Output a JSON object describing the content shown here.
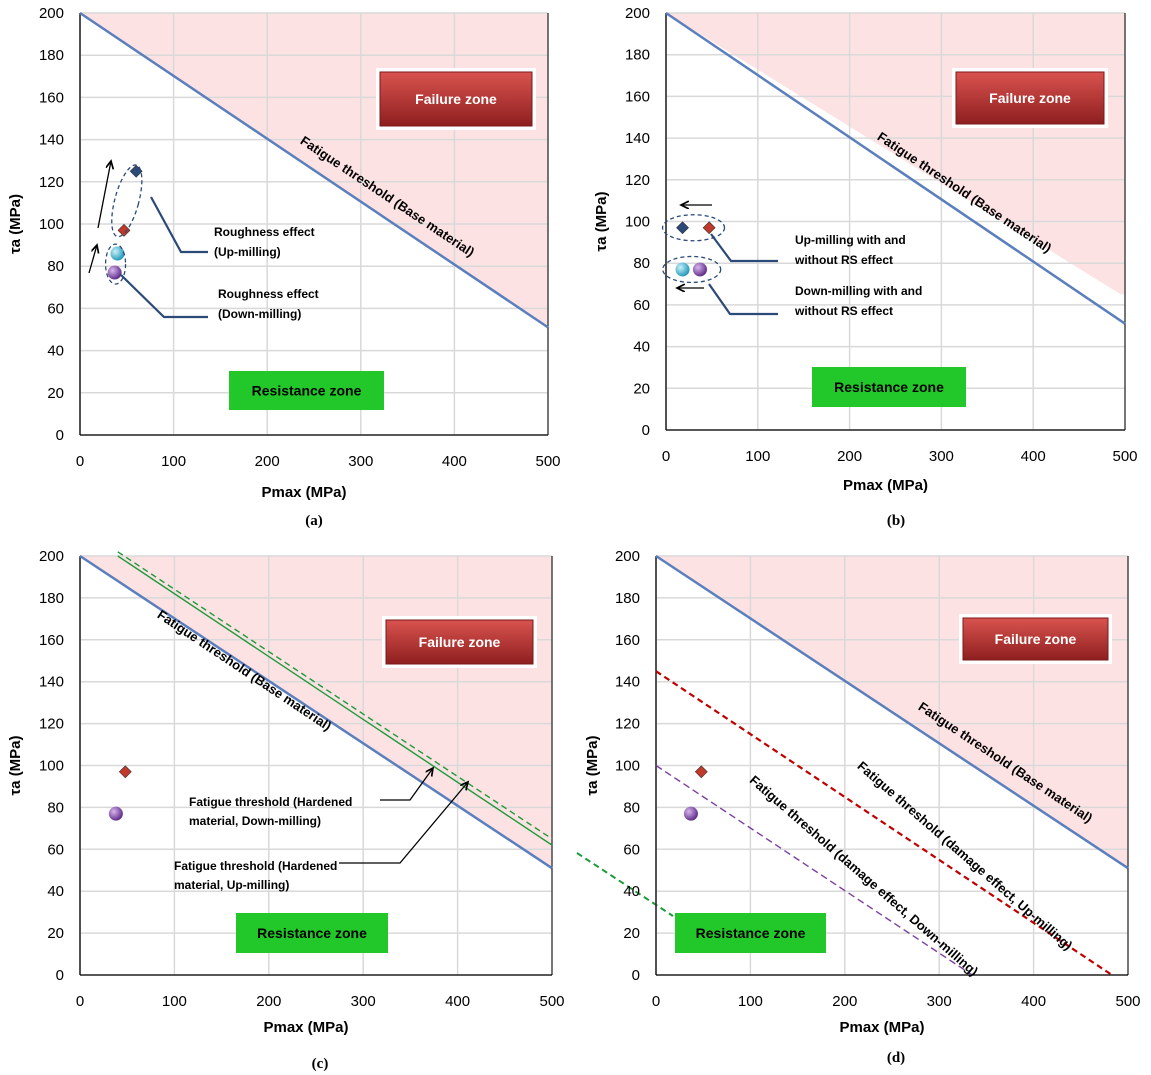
{
  "colors": {
    "failure_fill": "#fde2e4",
    "base_line": "#5b7fbd",
    "failure_box": "#b72d2d",
    "resistance_box": "#22c72a",
    "grid": "#d9d9d9",
    "up_milling_marker": "#c0392b",
    "down_milling_marker": "#7b3fa0",
    "hardened_line": "#1e9a3a",
    "damage_up_line": "#c00000",
    "damage_down_line": "#7b3fa0"
  },
  "chart_data": [
    {
      "panel": "a",
      "caption": "(a)",
      "type": "scatter",
      "xlabel": "Pmax (MPa)",
      "ylabel": "τa (MPa)",
      "xlim": [
        0,
        500
      ],
      "ylim": [
        0,
        200
      ],
      "xticks": [
        0,
        100,
        200,
        300,
        400,
        500
      ],
      "yticks": [
        0,
        20,
        40,
        60,
        80,
        100,
        120,
        140,
        160,
        180,
        200
      ],
      "grid": true,
      "failure_zone_label": "Failure zone",
      "resistance_zone_label": "Resistance zone",
      "lines": [
        {
          "label": "Fatigue threshold (Base material)",
          "x": [
            0,
            500
          ],
          "y": [
            200,
            51
          ],
          "style": "solid"
        }
      ],
      "points": [
        {
          "marker": "diamond",
          "color": "#2c4a78",
          "x": 60,
          "y": 125
        },
        {
          "marker": "diamond",
          "color": "#c0392b",
          "x": 47,
          "y": 97
        },
        {
          "marker": "sphere",
          "color": "#2fb3d3",
          "x": 40,
          "y": 86
        },
        {
          "marker": "sphere",
          "color": "#7b3fa0",
          "x": 37,
          "y": 77
        }
      ],
      "annotations": [
        {
          "lines": [
            "Roughness effect",
            "(Up-milling)"
          ]
        },
        {
          "lines": [
            "Roughness effect",
            "(Down-milling)"
          ]
        }
      ]
    },
    {
      "panel": "b",
      "caption": "(b)",
      "type": "scatter",
      "xlabel": "Pmax (MPa)",
      "ylabel": "τa (MPa)",
      "xlim": [
        0,
        500
      ],
      "ylim": [
        0,
        200
      ],
      "xticks": [
        0,
        100,
        200,
        300,
        400,
        500
      ],
      "yticks": [
        0,
        20,
        40,
        60,
        80,
        100,
        120,
        140,
        160,
        180,
        200
      ],
      "grid": true,
      "failure_zone_label": "Failure zone",
      "resistance_zone_label": "Resistance zone",
      "lines": [
        {
          "label": "Fatigue threshold (Base material)",
          "x": [
            0,
            500
          ],
          "y": [
            200,
            51
          ],
          "style": "solid"
        }
      ],
      "points": [
        {
          "marker": "diamond",
          "color": "#2c4a78",
          "x": 18,
          "y": 97
        },
        {
          "marker": "diamond",
          "color": "#c0392b",
          "x": 47,
          "y": 97
        },
        {
          "marker": "sphere",
          "color": "#2fb3d3",
          "x": 18,
          "y": 77
        },
        {
          "marker": "sphere",
          "color": "#7b3fa0",
          "x": 37,
          "y": 77
        }
      ],
      "annotations": [
        {
          "lines": [
            "Up-milling with and",
            "without RS effect"
          ]
        },
        {
          "lines": [
            "Down-milling with and",
            "without RS effect"
          ]
        }
      ]
    },
    {
      "panel": "c",
      "caption": "(c)",
      "type": "scatter",
      "xlabel": "Pmax (MPa)",
      "ylabel": "τa (MPa)",
      "xlim": [
        0,
        500
      ],
      "ylim": [
        0,
        200
      ],
      "xticks": [
        0,
        100,
        200,
        300,
        400,
        500
      ],
      "yticks": [
        0,
        20,
        40,
        60,
        80,
        100,
        120,
        140,
        160,
        180,
        200
      ],
      "grid": true,
      "failure_zone_label": "Failure zone",
      "resistance_zone_label": "Resistance zone",
      "lines": [
        {
          "label": "Fatigue threshold (Base material)",
          "x": [
            0,
            500
          ],
          "y": [
            200,
            51
          ],
          "style": "solid"
        },
        {
          "label": "Fatigue threshold (Hardened material, Down-milling)",
          "x": [
            40,
            500
          ],
          "y": [
            200,
            62
          ],
          "style": "solid"
        },
        {
          "label": "Fatigue threshold (Hardened material, Up-milling)",
          "x": [
            40,
            500
          ],
          "y": [
            202,
            65
          ],
          "style": "dashed"
        }
      ],
      "points": [
        {
          "marker": "diamond",
          "color": "#c0392b",
          "x": 48,
          "y": 97
        },
        {
          "marker": "sphere",
          "color": "#7b3fa0",
          "x": 38,
          "y": 77
        }
      ],
      "annotations": [
        {
          "lines": [
            "Fatigue threshold (Hardened",
            "material, Down-milling)"
          ]
        },
        {
          "lines": [
            "Fatigue threshold (Hardened",
            "material, Up-milling)"
          ]
        }
      ]
    },
    {
      "panel": "d",
      "caption": "(d)",
      "type": "scatter",
      "xlabel": "Pmax (MPa)",
      "ylabel": "τa (MPa)",
      "xlim": [
        0,
        500
      ],
      "ylim": [
        0,
        200
      ],
      "xticks": [
        0,
        100,
        200,
        300,
        400,
        500
      ],
      "yticks": [
        0,
        20,
        40,
        60,
        80,
        100,
        120,
        140,
        160,
        180,
        200
      ],
      "grid": true,
      "failure_zone_label": "Failure zone",
      "resistance_zone_label": "Resistance zone",
      "lines": [
        {
          "label": "Fatigue threshold (Base material)",
          "x": [
            0,
            500
          ],
          "y": [
            200,
            51
          ],
          "style": "solid"
        },
        {
          "label": "Fatigue threshold (damage effect, Up-milling)",
          "x": [
            0,
            483
          ],
          "y": [
            145,
            0
          ],
          "style": "dashed"
        },
        {
          "label": "Fatigue threshold (damage effect, Down-milling)",
          "x": [
            0,
            335
          ],
          "y": [
            100,
            0
          ],
          "style": "dashed"
        }
      ],
      "points": [
        {
          "marker": "diamond",
          "color": "#c0392b",
          "x": 48,
          "y": 97
        },
        {
          "marker": "sphere",
          "color": "#7b3fa0",
          "x": 37,
          "y": 77
        }
      ],
      "annotations": []
    }
  ]
}
